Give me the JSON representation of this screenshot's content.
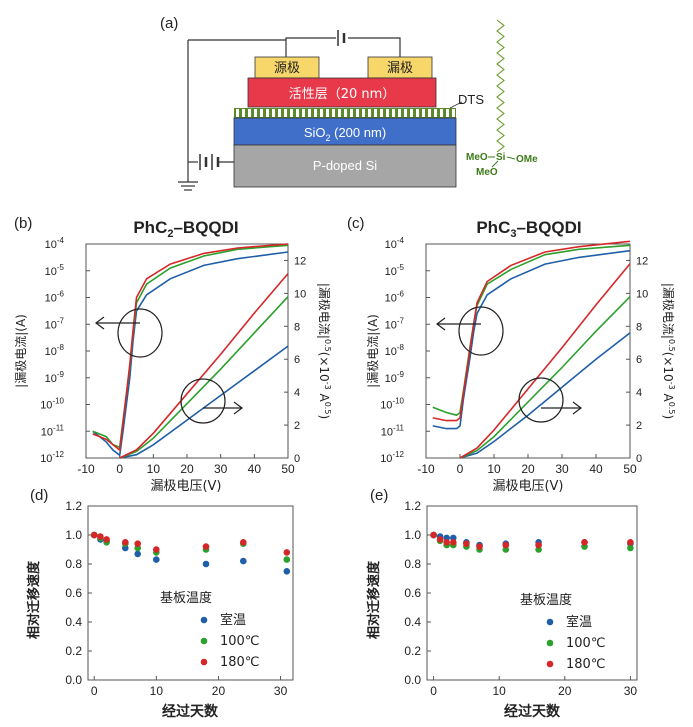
{
  "colors": {
    "blue": "#1f5fa8",
    "green": "#2ca02c",
    "red": "#d62728",
    "source_drain": "#f7d66a",
    "active_layer": "#e8394a",
    "sio2": "#3f6fc9",
    "si": "#a6a6a6",
    "dts": "#5a8a2a"
  },
  "panel_a": {
    "label": "(a)",
    "source": "源极",
    "drain": "漏极",
    "active_layer": "活性层（20 nm）",
    "dts": "DTS",
    "sio2_main": "SiO",
    "sio2_sub": "2",
    "sio2_rest": " (200 nm)",
    "si": "P-doped Si",
    "molecule_left": "MeO",
    "molecule_si": "Si",
    "molecule_right": "OMe",
    "molecule_bottom": "MeO"
  },
  "panel_b": {
    "label": "(b)",
    "title_pre": "PhC",
    "title_sub": "2",
    "title_post": "–BQQDI",
    "xlabel": "漏极电压(V)",
    "ylabel_left": "|漏极电流|(A)",
    "ylabel_right": "|漏极电流|",
    "ylabel_right_sup": "0.5",
    "ylabel_right_unit": "(×10",
    "ylabel_right_unit_sup": "-3",
    "ylabel_right_unit_end": " A",
    "ylabel_right_unit_end_sup": "0.5",
    "ylabel_right_close": ")"
  },
  "panel_c": {
    "label": "(c)",
    "title_pre": "PhC",
    "title_sub": "3",
    "title_post": "–BQQDI",
    "xlabel": "漏极电压(V)",
    "ylabel_left": "|漏极电流|(A)",
    "ylabel_right": "|漏极电流|",
    "ylabel_right_sup": "0.5",
    "ylabel_right_unit": "(×10",
    "ylabel_right_unit_sup": "-3",
    "ylabel_right_unit_end": " A",
    "ylabel_right_unit_end_sup": "0.5",
    "ylabel_right_close": ")"
  },
  "panel_d": {
    "label": "(d)",
    "xlabel": "经过天数",
    "ylabel": "相对迁移速度",
    "legend_title": "基板温度",
    "legend": [
      "室温",
      "100℃",
      "180℃"
    ]
  },
  "panel_e": {
    "label": "(e)",
    "xlabel": "经过天数",
    "ylabel": "相对迁移速度",
    "legend_title": "基板温度",
    "legend": [
      "室温",
      "100℃",
      "180℃"
    ]
  },
  "chart_data": [
    {
      "id": "b",
      "type": "line",
      "title": "PhC2–BQQDI",
      "xlabel": "漏极电压(V)",
      "xlim": [
        -10,
        50
      ],
      "xticks": [
        -10,
        0,
        10,
        20,
        30,
        40,
        50
      ],
      "y_left": {
        "label": "|漏极电流|(A)",
        "scale": "log",
        "lim": [
          1e-12,
          0.0001
        ],
        "tick_exponents": [
          -12,
          -11,
          -10,
          -9,
          -8,
          -7,
          -6,
          -5,
          -4
        ]
      },
      "y_right": {
        "label": "|漏极电流|^0.5 (×10^-3 A^0.5)",
        "lim": [
          0,
          13
        ],
        "ticks": [
          0,
          2,
          4,
          6,
          8,
          10,
          12
        ]
      },
      "series": [
        {
          "name": "blue",
          "log_current": {
            "x": [
              -8,
              -4,
              -2,
              0,
              1,
              3,
              4,
              5,
              8,
              15,
              25,
              35,
              50
            ],
            "y": [
              -11,
              -11.4,
              -11.7,
              -11.9,
              -11,
              -9,
              -7.6,
              -6.5,
              -5.9,
              -5.3,
              -4.8,
              -4.55,
              -4.3
            ]
          },
          "sqrt_current": {
            "x": [
              0,
              5,
              10,
              20,
              30,
              40,
              50
            ],
            "y": [
              0,
              0.2,
              0.8,
              2.3,
              3.8,
              5.3,
              6.8
            ]
          }
        },
        {
          "name": "green",
          "log_current": {
            "x": [
              -8,
              -4,
              -2,
              0,
              1,
              3,
              4,
              5,
              8,
              15,
              25,
              35,
              50
            ],
            "y": [
              -11,
              -11.2,
              -11.5,
              -11.6,
              -10.6,
              -8.6,
              -7.3,
              -6.2,
              -5.5,
              -4.9,
              -4.45,
              -4.2,
              -4.05
            ]
          },
          "sqrt_current": {
            "x": [
              0,
              5,
              10,
              20,
              30,
              40,
              50
            ],
            "y": [
              0,
              0.4,
              1.2,
              3.3,
              5.4,
              7.6,
              9.8
            ]
          }
        },
        {
          "name": "red",
          "log_current": {
            "x": [
              -8,
              -4,
              -2,
              0,
              1,
              3,
              4,
              5,
              8,
              15,
              25,
              35,
              50
            ],
            "y": [
              -11.1,
              -11.3,
              -11.5,
              -11.7,
              -10.7,
              -8.5,
              -7.2,
              -6,
              -5.3,
              -4.75,
              -4.35,
              -4.15,
              -4
            ]
          },
          "sqrt_current": {
            "x": [
              0,
              5,
              10,
              20,
              30,
              40,
              50
            ],
            "y": [
              0,
              0.5,
              1.5,
              3.9,
              6.3,
              8.8,
              11.2
            ]
          }
        }
      ]
    },
    {
      "id": "c",
      "type": "line",
      "title": "PhC3–BQQDI",
      "xlabel": "漏极电压(V)",
      "xlim": [
        -10,
        50
      ],
      "xticks": [
        -10,
        0,
        10,
        20,
        30,
        40,
        50
      ],
      "y_left": {
        "label": "|漏极电流|(A)",
        "scale": "log",
        "lim": [
          1e-12,
          0.0001
        ],
        "tick_exponents": [
          -12,
          -11,
          -10,
          -9,
          -8,
          -7,
          -6,
          -5,
          -4
        ]
      },
      "y_right": {
        "label": "|漏极电流|^0.5 (×10^-3 A^0.5)",
        "lim": [
          0,
          13
        ],
        "ticks": [
          0,
          2,
          4,
          6,
          8,
          10,
          12
        ]
      },
      "series": [
        {
          "name": "blue",
          "log_current": {
            "x": [
              -8,
              -4,
              -1,
              0,
              1,
              3,
              4,
              5,
              8,
              15,
              25,
              35,
              50
            ],
            "y": [
              -10.8,
              -10.9,
              -10.9,
              -10.8,
              -9.8,
              -8.2,
              -7.3,
              -6.6,
              -5.9,
              -5.3,
              -4.75,
              -4.5,
              -4.25
            ]
          },
          "sqrt_current": {
            "x": [
              0,
              5,
              10,
              20,
              30,
              40,
              50
            ],
            "y": [
              0,
              0.3,
              1,
              2.6,
              4.3,
              6,
              7.6
            ]
          }
        },
        {
          "name": "green",
          "log_current": {
            "x": [
              -8,
              -4,
              -1,
              0,
              1,
              3,
              4,
              5,
              8,
              15,
              25,
              35,
              50
            ],
            "y": [
              -10.1,
              -10.3,
              -10.4,
              -10.3,
              -9.5,
              -7.8,
              -7,
              -6.3,
              -5.5,
              -4.95,
              -4.4,
              -4.2,
              -4.05
            ]
          },
          "sqrt_current": {
            "x": [
              0,
              5,
              10,
              20,
              30,
              40,
              50
            ],
            "y": [
              0,
              0.45,
              1.3,
              3.4,
              5.5,
              7.7,
              9.8
            ]
          }
        },
        {
          "name": "red",
          "log_current": {
            "x": [
              -8,
              -4,
              -1,
              0,
              1,
              3,
              4,
              5,
              8,
              15,
              25,
              35,
              50
            ],
            "y": [
              -10.5,
              -10.6,
              -10.6,
              -10.5,
              -9.6,
              -7.9,
              -7,
              -6.2,
              -5.4,
              -4.8,
              -4.3,
              -4.1,
              -3.9
            ]
          },
          "sqrt_current": {
            "x": [
              0,
              5,
              10,
              20,
              30,
              40,
              50
            ],
            "y": [
              0,
              0.6,
              1.7,
              4.2,
              6.7,
              9.3,
              11.8
            ]
          }
        }
      ]
    },
    {
      "id": "d",
      "type": "scatter",
      "xlabel": "经过天数",
      "ylabel": "相对迁移速度",
      "xlim": [
        -1,
        32
      ],
      "xticks": [
        0,
        10,
        20,
        30
      ],
      "ylim": [
        0,
        1.2
      ],
      "yticks": [
        0,
        0.2,
        0.4,
        0.6,
        0.8,
        1.0,
        1.2
      ],
      "series": [
        {
          "name": "室温",
          "x": [
            0,
            1,
            2,
            5,
            7,
            10,
            18,
            24,
            31
          ],
          "y": [
            1.0,
            0.97,
            0.96,
            0.91,
            0.87,
            0.83,
            0.8,
            0.82,
            0.75
          ]
        },
        {
          "name": "100℃",
          "x": [
            0,
            1,
            2,
            5,
            7,
            10,
            18,
            24,
            31
          ],
          "y": [
            1.0,
            0.98,
            0.95,
            0.94,
            0.91,
            0.88,
            0.9,
            0.94,
            0.83
          ]
        },
        {
          "name": "180℃",
          "x": [
            0,
            1,
            2,
            5,
            7,
            10,
            18,
            24,
            31
          ],
          "y": [
            1.0,
            0.99,
            0.97,
            0.95,
            0.94,
            0.9,
            0.92,
            0.95,
            0.88
          ]
        }
      ]
    },
    {
      "id": "e",
      "type": "scatter",
      "xlabel": "经过天数",
      "ylabel": "相对迁移速度",
      "xlim": [
        -1,
        31
      ],
      "xticks": [
        0,
        10,
        20,
        30
      ],
      "ylim": [
        0,
        1.2
      ],
      "yticks": [
        0,
        0.2,
        0.4,
        0.6,
        0.8,
        1.0,
        1.2
      ],
      "series": [
        {
          "name": "室温",
          "x": [
            0,
            1,
            2,
            3,
            5,
            7,
            11,
            16,
            23,
            30
          ],
          "y": [
            1.0,
            0.99,
            0.98,
            0.98,
            0.95,
            0.93,
            0.94,
            0.95,
            0.95,
            0.94
          ]
        },
        {
          "name": "100℃",
          "x": [
            0,
            1,
            2,
            3,
            5,
            7,
            11,
            16,
            23,
            30
          ],
          "y": [
            1.0,
            0.96,
            0.93,
            0.93,
            0.92,
            0.9,
            0.9,
            0.9,
            0.92,
            0.91
          ]
        },
        {
          "name": "180℃",
          "x": [
            0,
            1,
            2,
            3,
            5,
            7,
            11,
            16,
            23,
            30
          ],
          "y": [
            1.0,
            0.97,
            0.95,
            0.95,
            0.94,
            0.92,
            0.93,
            0.93,
            0.95,
            0.95
          ]
        }
      ]
    }
  ]
}
